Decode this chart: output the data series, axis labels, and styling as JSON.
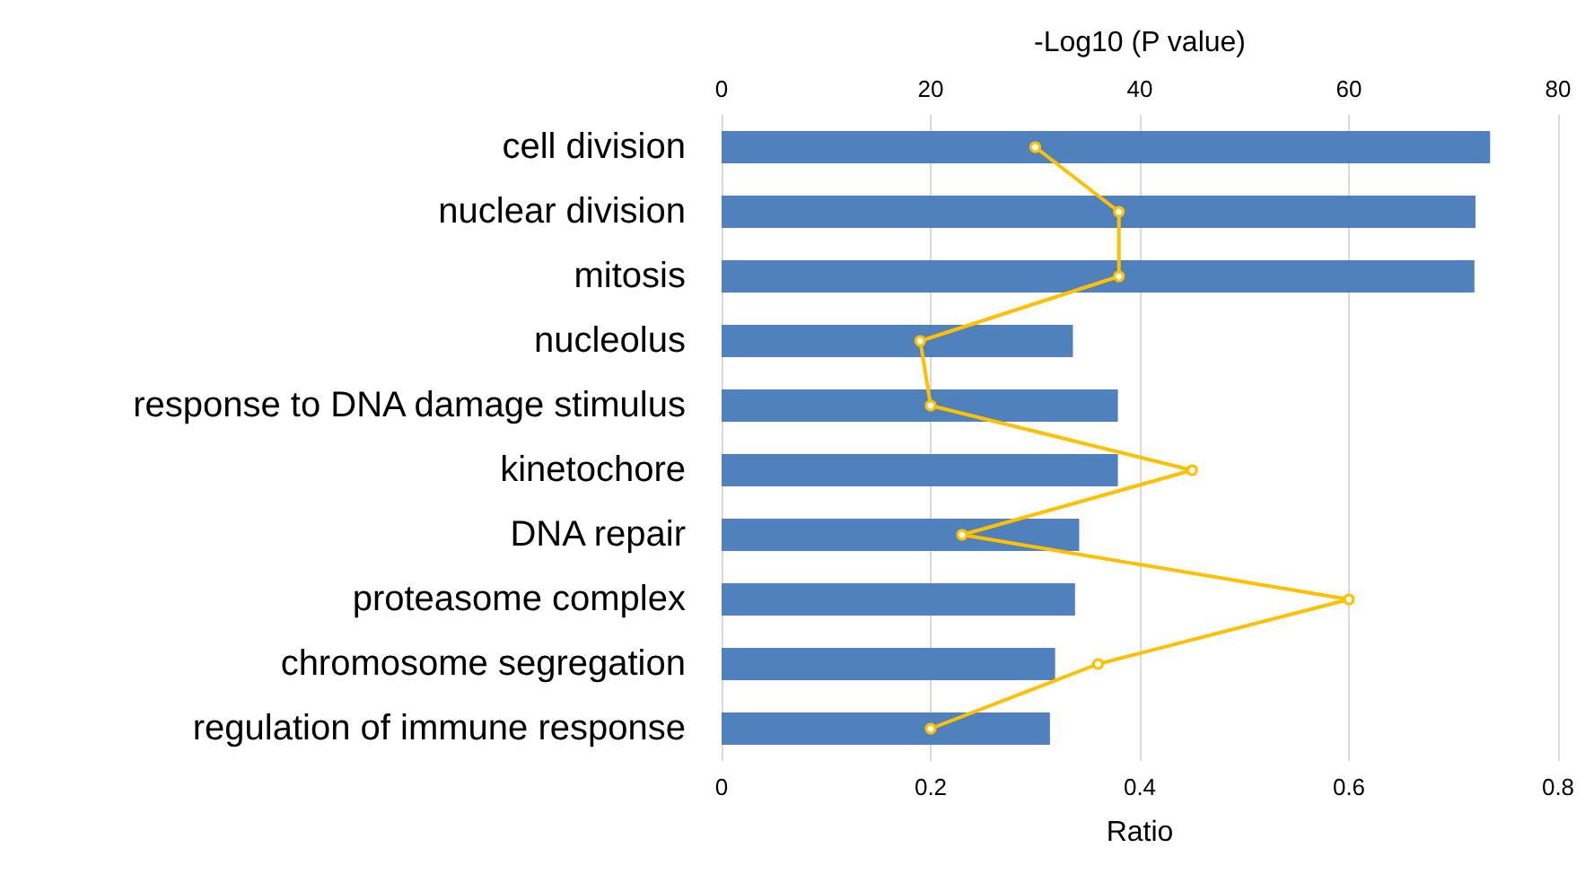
{
  "chart_data": {
    "type": "bar",
    "orientation": "horizontal",
    "xlabel": "Ratio",
    "x2label": "-Log10 (P value)",
    "categories": [
      "cell division",
      "nuclear division",
      "mitosis",
      "nucleolus",
      "response to DNA damage stimulus",
      "kinetochore",
      "DNA repair",
      "proteasome complex",
      "chromosome segregation",
      "regulation of immune response"
    ],
    "series": [
      {
        "axis": "x2",
        "color": "#4f81bd",
        "values": [
          73.5,
          72.1,
          72,
          33.6,
          37.9,
          37.9,
          34.2,
          33.8,
          31.9,
          31.4
        ]
      },
      {
        "type": "line",
        "color": "#ffc000",
        "values": [
          0.3,
          0.38,
          0.38,
          0.19,
          0.2,
          0.45,
          0.23,
          0.6,
          0.36,
          0.2
        ]
      }
    ],
    "xlim": [
      0,
      0.8
    ],
    "xticks": [
      0,
      0.2,
      0.4,
      0.6,
      0.8
    ],
    "x2lim": [
      0,
      80
    ],
    "x2ticks": [
      0,
      20,
      40,
      60,
      80
    ],
    "grid": "x",
    "marker": "circle",
    "line_style": "solid"
  }
}
